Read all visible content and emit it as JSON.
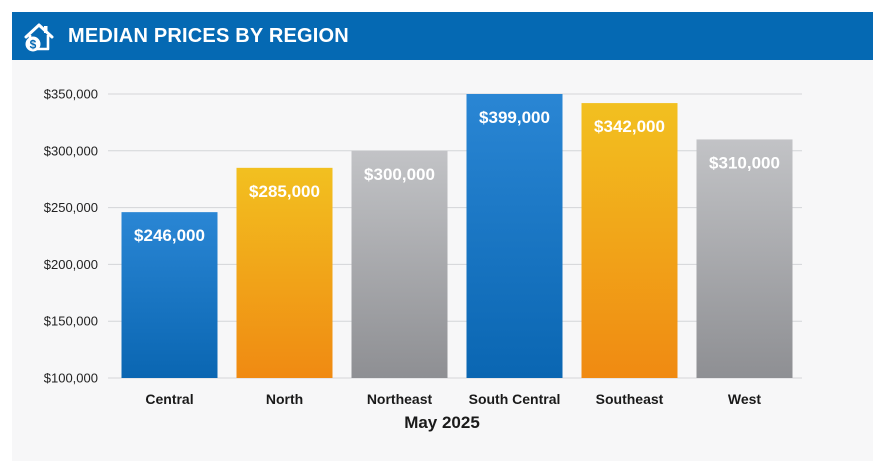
{
  "header": {
    "title": "MEDIAN PRICES BY REGION",
    "icon": "house-dollar-icon"
  },
  "colors": {
    "header_bg": "#0569b3",
    "blue_top": "#2a86d4",
    "blue_bottom": "#0a66b2",
    "orange_top": "#f2c020",
    "orange_bottom": "#f08a12",
    "gray_top": "#c2c3c6",
    "gray_bottom": "#8e8f93"
  },
  "chart_data": {
    "type": "bar",
    "title": "MEDIAN PRICES BY REGION",
    "xlabel": "May 2025",
    "ylabel": "",
    "categories": [
      "Central",
      "North",
      "Northeast",
      "South Central",
      "Southeast",
      "West"
    ],
    "values": [
      246000,
      285000,
      300000,
      399000,
      342000,
      310000
    ],
    "data_labels": [
      "$246,000",
      "$285,000",
      "$300,000",
      "$399,000",
      "$342,000",
      "$310,000"
    ],
    "bar_colors": [
      "blue",
      "orange",
      "gray",
      "blue",
      "orange",
      "gray"
    ],
    "ylim": [
      100000,
      350000
    ],
    "yticks": [
      100000,
      150000,
      200000,
      250000,
      300000,
      350000
    ],
    "ytick_labels": [
      "$100,000",
      "$150,000",
      "$200,000",
      "$250,000",
      "$300,000",
      "$350,000"
    ],
    "grid": true,
    "legend": "none"
  }
}
